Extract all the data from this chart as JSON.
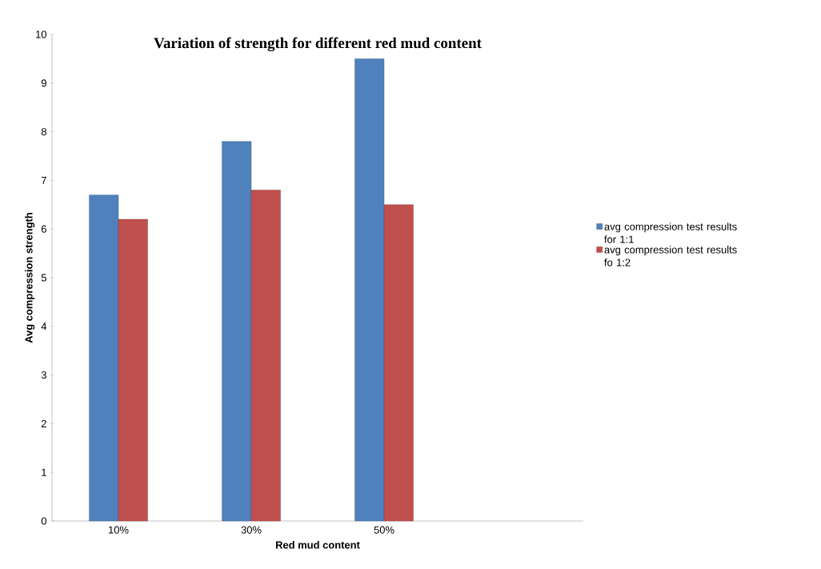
{
  "chart_data": {
    "type": "bar",
    "title": "Variation of strength for different red mud content",
    "xlabel": "Red mud content",
    "ylabel": "Avg compression strength",
    "categories": [
      "10%",
      "30%",
      "50%",
      null
    ],
    "series": [
      {
        "name": "avg compression test results for 1:1",
        "color": "#4f81bd",
        "values": [
          6.7,
          7.8,
          9.5,
          null
        ]
      },
      {
        "name": "avg compression test results fo 1:2",
        "color": "#c0504d",
        "values": [
          6.2,
          6.8,
          6.5,
          null
        ]
      }
    ],
    "ylim": [
      0,
      10
    ],
    "yticks": [
      0,
      1,
      2,
      3,
      4,
      5,
      6,
      7,
      8,
      9,
      10
    ],
    "grid": false,
    "legend": "right"
  }
}
